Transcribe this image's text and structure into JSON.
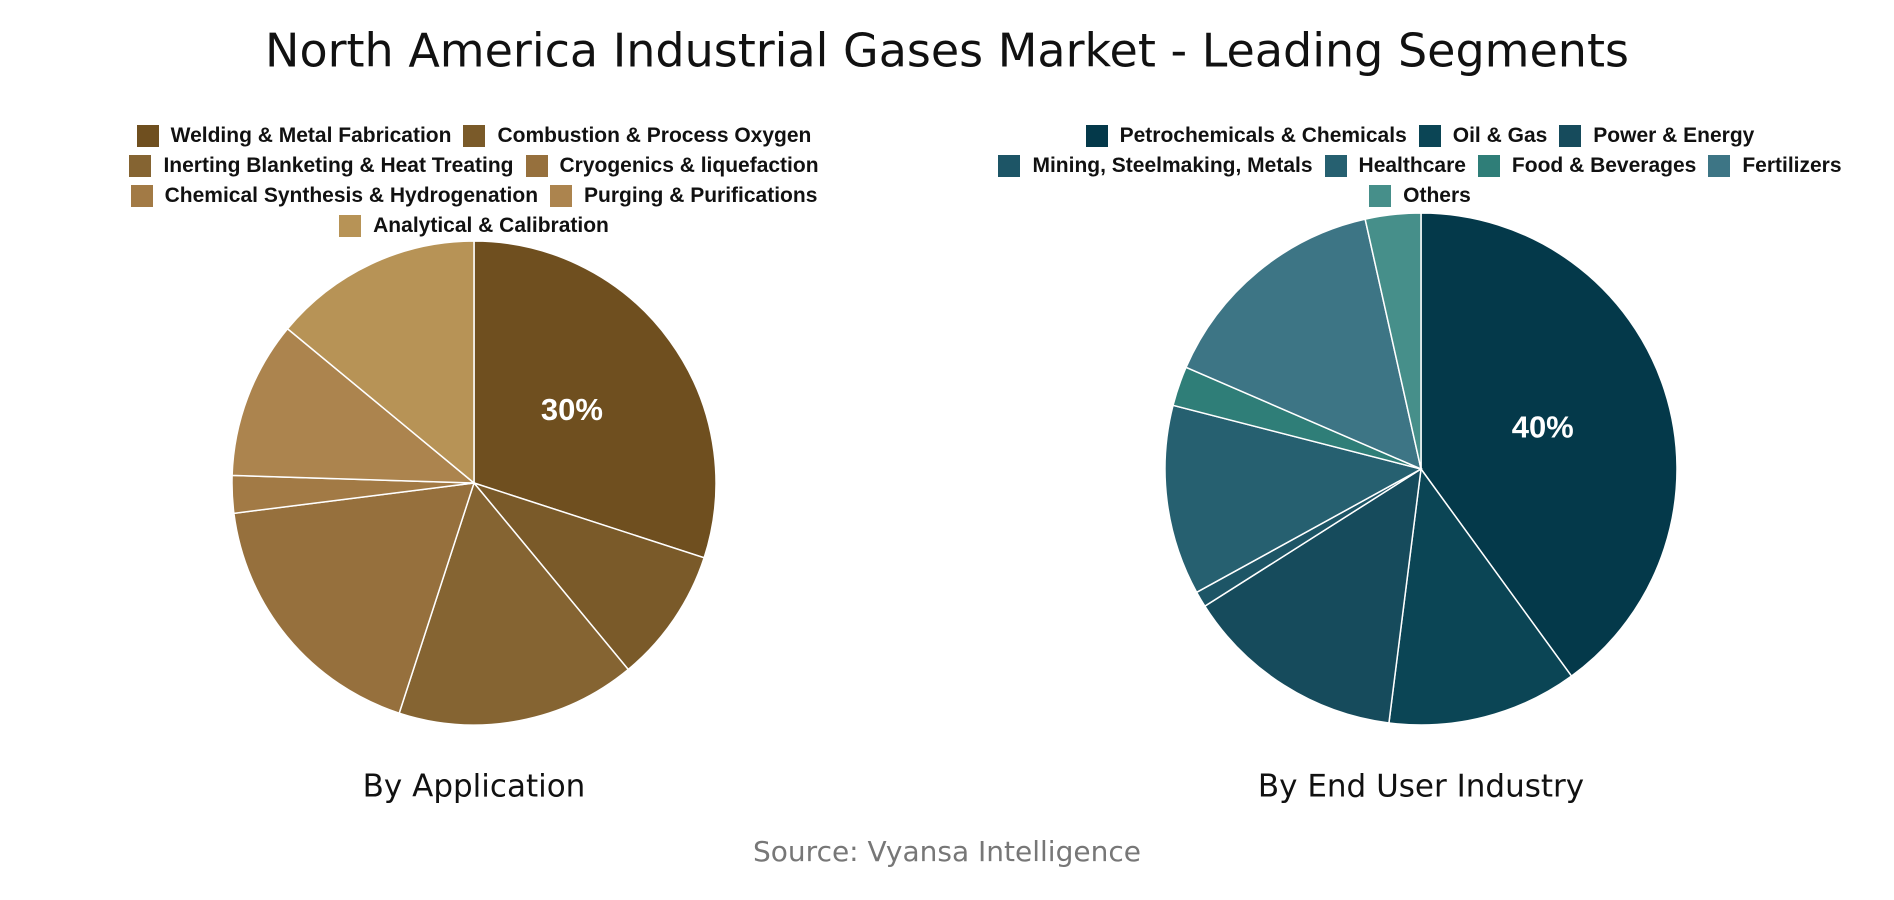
{
  "title": "North America Industrial Gases Market - Leading Segments",
  "source": "Source: Vyansa Intelligence",
  "chart_data": [
    {
      "type": "pie",
      "title": "By Application",
      "categories": [
        "Welding & Metal Fabrication",
        "Combustion & Process Oxygen",
        "Inerting Blanketing & Heat Treating",
        "Cryogenics & liquefaction",
        "Chemical Synthesis & Hydrogenation",
        "Purging & Purifications",
        "Analytical & Calibration"
      ],
      "values": [
        30,
        9,
        16,
        18,
        2.5,
        10.5,
        14
      ],
      "value_labels": [
        "30%",
        null,
        null,
        null,
        null,
        null,
        null
      ],
      "colors": [
        "#6f4f1f",
        "#7a5a29",
        "#856432",
        "#96703d",
        "#a27a45",
        "#ac844e",
        "#b79356"
      ]
    },
    {
      "type": "pie",
      "title": "By End User Industry",
      "categories": [
        "Petrochemicals & Chemicals",
        "Oil & Gas",
        "Power & Energy",
        "Mining, Steelmaking, Metals",
        "Healthcare",
        "Food & Beverages",
        "Fertilizers",
        "Others"
      ],
      "values": [
        40,
        12,
        14,
        1,
        12,
        2.5,
        15,
        3.5
      ],
      "value_labels": [
        "40%",
        null,
        null,
        null,
        null,
        null,
        null,
        null
      ],
      "colors": [
        "#04394a",
        "#0b4555",
        "#164b5c",
        "#1d5566",
        "#266070",
        "#2f7e78",
        "#3d7585",
        "#468f8a"
      ]
    }
  ]
}
